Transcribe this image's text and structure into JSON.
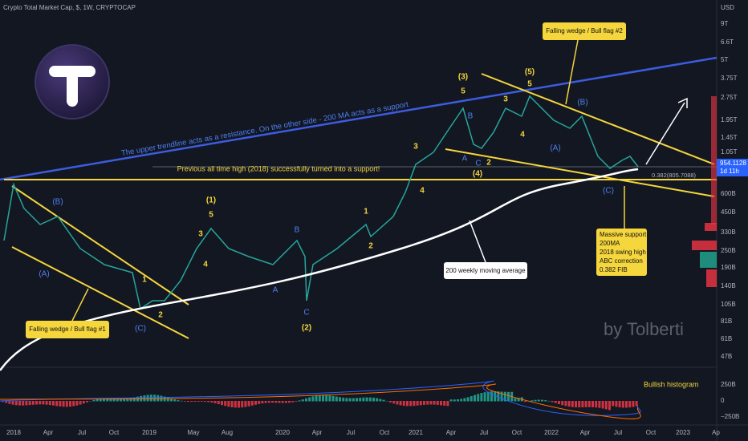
{
  "header": {
    "symbol": "Crypto Total Market Cap, $, 1W, CRYPTOCAP"
  },
  "price_axis": {
    "unit": "USD",
    "labels": [
      "9T",
      "6.6T",
      "5T",
      "3.75T",
      "2.75T",
      "1.95T",
      "1.45T",
      "1.05T",
      "600B",
      "450B",
      "330B",
      "250B",
      "190B",
      "140B",
      "105B",
      "81B",
      "61B",
      "47B"
    ],
    "current": "954.1128",
    "countdown": "1d 11h",
    "fib": "0.382(805.7088)"
  },
  "time_axis": [
    "2018",
    "Apr",
    "Jul",
    "Oct",
    "2019",
    "May",
    "Aug",
    "2020",
    "Apr",
    "Jul",
    "Oct",
    "2021",
    "Apr",
    "Jul",
    "Oct",
    "2022",
    "Apr",
    "Jul",
    "Oct",
    "2023",
    "Ap"
  ],
  "histogram_axis": [
    "250B",
    "0",
    "−250B"
  ],
  "wave_labels": [
    "(B)",
    "(A)",
    "1",
    "2",
    "(C)",
    "(1)",
    "5",
    "3",
    "4",
    "B",
    "A",
    "C",
    "(2)",
    "1",
    "2",
    "3",
    "4",
    "(3)",
    "5",
    "B",
    "A",
    "C",
    "2",
    "(4)",
    "3",
    "4",
    "(5)",
    "5",
    "(B)",
    "(A)",
    "(C)"
  ],
  "annotations": {
    "resistance": "The upper trendline acts as a resistance. On the other side - 200 MA acts as a support",
    "ath_support": "Previous all time high (2018) successfully turned into a support!",
    "wedge2": "Falling wedge / Bull flag #2",
    "wedge1": "Falling wedge / Bull flag #1",
    "ma": "200 weekly moving average",
    "massive_support": [
      "Massive support:",
      "200MA",
      "2018 swing high",
      "ABC correction",
      "0.382 FIB"
    ],
    "histogram": "Bullish histogram"
  },
  "watermark": "by Tolberti"
}
